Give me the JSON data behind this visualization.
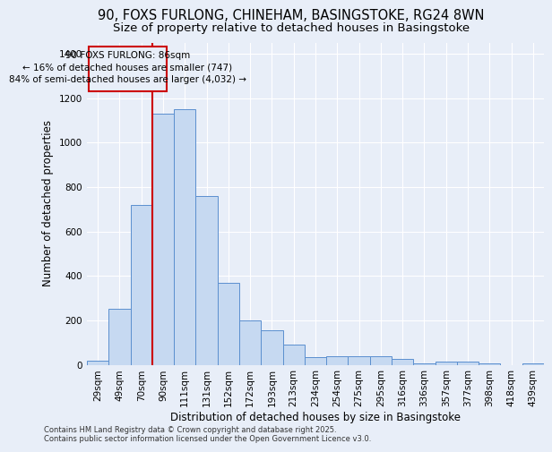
{
  "title_line1": "90, FOXS FURLONG, CHINEHAM, BASINGSTOKE, RG24 8WN",
  "title_line2": "Size of property relative to detached houses in Basingstoke",
  "xlabel": "Distribution of detached houses by size in Basingstoke",
  "ylabel": "Number of detached properties",
  "categories": [
    "29sqm",
    "49sqm",
    "70sqm",
    "90sqm",
    "111sqm",
    "131sqm",
    "152sqm",
    "172sqm",
    "193sqm",
    "213sqm",
    "234sqm",
    "254sqm",
    "275sqm",
    "295sqm",
    "316sqm",
    "336sqm",
    "357sqm",
    "377sqm",
    "398sqm",
    "418sqm",
    "439sqm"
  ],
  "values": [
    20,
    250,
    720,
    1130,
    1150,
    760,
    370,
    200,
    155,
    90,
    35,
    40,
    40,
    40,
    28,
    5,
    15,
    15,
    5,
    0,
    5
  ],
  "bar_color": "#c6d9f1",
  "bar_edge_color": "#5b8fcf",
  "vline_x": 2.5,
  "vline_color": "#cc0000",
  "annotation_text": "90 FOXS FURLONG: 86sqm\n← 16% of detached houses are smaller (747)\n84% of semi-detached houses are larger (4,032) →",
  "annotation_box_color": "#cc0000",
  "ylim": [
    0,
    1450
  ],
  "yticks": [
    0,
    200,
    400,
    600,
    800,
    1000,
    1200,
    1400
  ],
  "bg_color": "#e8eef8",
  "grid_color": "#d0d8e8",
  "footer": "Contains HM Land Registry data © Crown copyright and database right 2025.\nContains public sector information licensed under the Open Government Licence v3.0.",
  "title_fontsize": 10.5,
  "subtitle_fontsize": 9.5,
  "axis_label_fontsize": 8.5,
  "tick_fontsize": 7.5,
  "annotation_fontsize": 7.5,
  "footer_fontsize": 6.0
}
